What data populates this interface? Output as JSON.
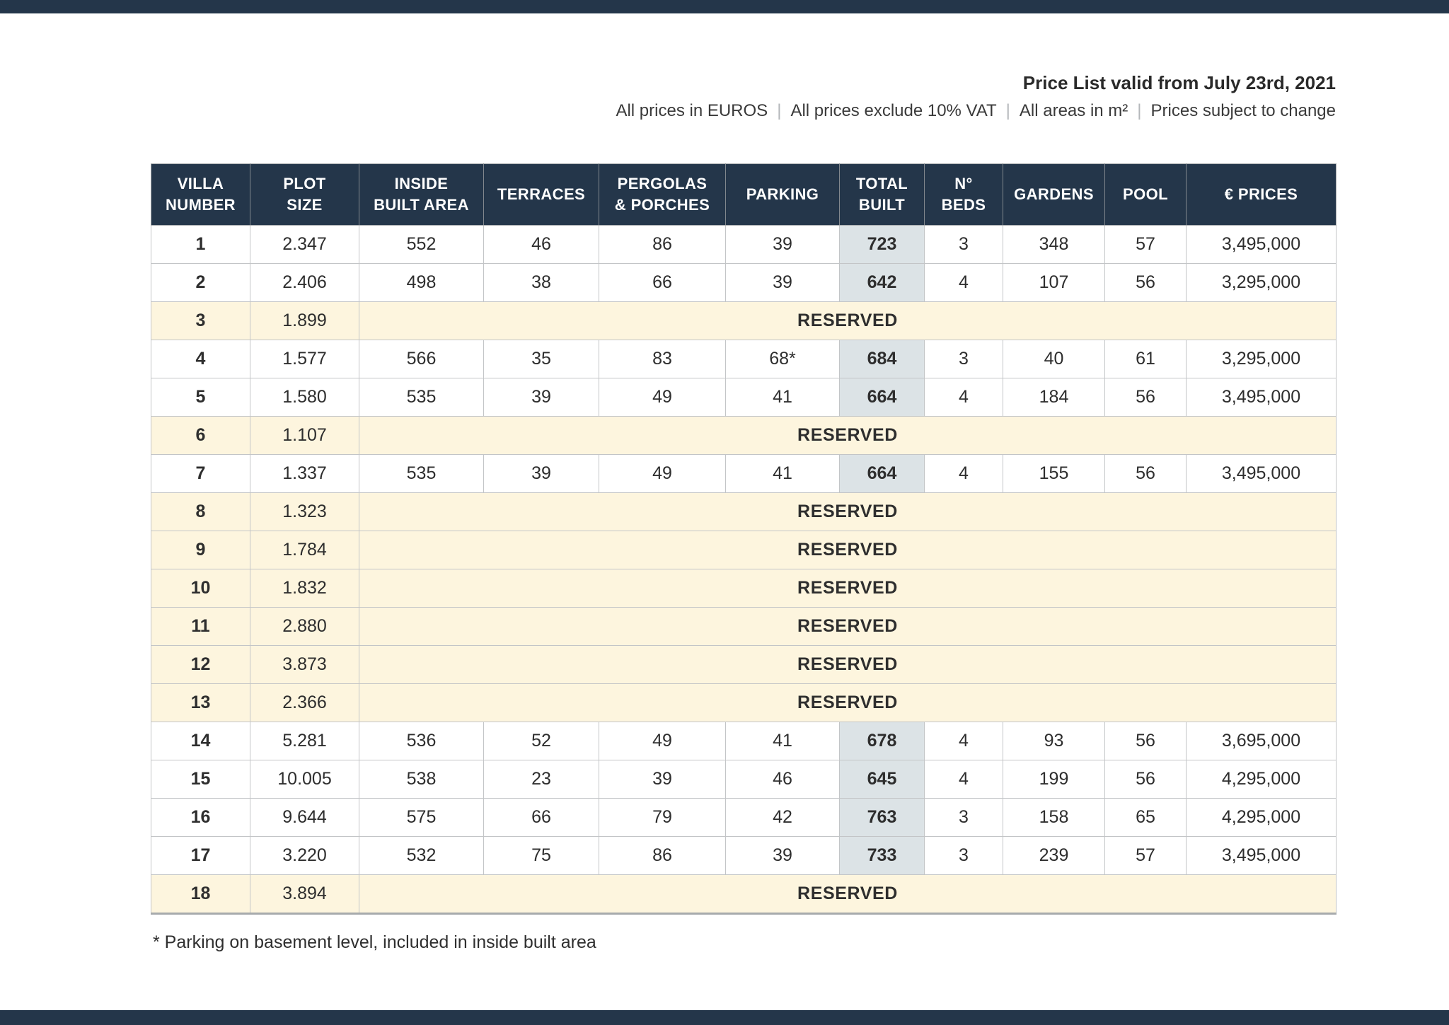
{
  "header": {
    "title": "Price List valid from July 23rd, 2021",
    "conditions": [
      "All prices in EUROS",
      "All prices exclude 10% VAT",
      "All areas in m²",
      "Prices subject to change"
    ],
    "separator": "|"
  },
  "table": {
    "columns": [
      {
        "key": "villa",
        "label": "VILLA\nNUMBER"
      },
      {
        "key": "plot",
        "label": "PLOT\nSIZE"
      },
      {
        "key": "inside",
        "label": "INSIDE\nBUILT AREA"
      },
      {
        "key": "terraces",
        "label": "TERRACES"
      },
      {
        "key": "pergolas",
        "label": "PERGOLAS\n& PORCHES"
      },
      {
        "key": "parking",
        "label": "PARKING"
      },
      {
        "key": "total",
        "label": "TOTAL\nBUILT"
      },
      {
        "key": "beds",
        "label": "N°\nBEDS"
      },
      {
        "key": "gardens",
        "label": "GARDENS"
      },
      {
        "key": "pool",
        "label": "POOL"
      },
      {
        "key": "price",
        "label": "€ PRICES"
      }
    ],
    "reserved_label": "RESERVED",
    "rows": [
      {
        "villa": "1",
        "plot": "2.347",
        "reserved": false,
        "inside": "552",
        "terraces": "46",
        "pergolas": "86",
        "parking": "39",
        "total": "723",
        "beds": "3",
        "gardens": "348",
        "pool": "57",
        "price": "3,495,000"
      },
      {
        "villa": "2",
        "plot": "2.406",
        "reserved": false,
        "inside": "498",
        "terraces": "38",
        "pergolas": "66",
        "parking": "39",
        "total": "642",
        "beds": "4",
        "gardens": "107",
        "pool": "56",
        "price": "3,295,000"
      },
      {
        "villa": "3",
        "plot": "1.899",
        "reserved": true
      },
      {
        "villa": "4",
        "plot": "1.577",
        "reserved": false,
        "inside": "566",
        "terraces": "35",
        "pergolas": "83",
        "parking": "68*",
        "total": "684",
        "beds": "3",
        "gardens": "40",
        "pool": "61",
        "price": "3,295,000"
      },
      {
        "villa": "5",
        "plot": "1.580",
        "reserved": false,
        "inside": "535",
        "terraces": "39",
        "pergolas": "49",
        "parking": "41",
        "total": "664",
        "beds": "4",
        "gardens": "184",
        "pool": "56",
        "price": "3,495,000"
      },
      {
        "villa": "6",
        "plot": "1.107",
        "reserved": true
      },
      {
        "villa": "7",
        "plot": "1.337",
        "reserved": false,
        "inside": "535",
        "terraces": "39",
        "pergolas": "49",
        "parking": "41",
        "total": "664",
        "beds": "4",
        "gardens": "155",
        "pool": "56",
        "price": "3,495,000"
      },
      {
        "villa": "8",
        "plot": "1.323",
        "reserved": true
      },
      {
        "villa": "9",
        "plot": "1.784",
        "reserved": true
      },
      {
        "villa": "10",
        "plot": "1.832",
        "reserved": true
      },
      {
        "villa": "11",
        "plot": "2.880",
        "reserved": true
      },
      {
        "villa": "12",
        "plot": "3.873",
        "reserved": true
      },
      {
        "villa": "13",
        "plot": "2.366",
        "reserved": true
      },
      {
        "villa": "14",
        "plot": "5.281",
        "reserved": false,
        "inside": "536",
        "terraces": "52",
        "pergolas": "49",
        "parking": "41",
        "total": "678",
        "beds": "4",
        "gardens": "93",
        "pool": "56",
        "price": "3,695,000"
      },
      {
        "villa": "15",
        "plot": "10.005",
        "reserved": false,
        "inside": "538",
        "terraces": "23",
        "pergolas": "39",
        "parking": "46",
        "total": "645",
        "beds": "4",
        "gardens": "199",
        "pool": "56",
        "price": "4,295,000"
      },
      {
        "villa": "16",
        "plot": "9.644",
        "reserved": false,
        "inside": "575",
        "terraces": "66",
        "pergolas": "79",
        "parking": "42",
        "total": "763",
        "beds": "3",
        "gardens": "158",
        "pool": "65",
        "price": "4,295,000"
      },
      {
        "villa": "17",
        "plot": "3.220",
        "reserved": false,
        "inside": "532",
        "terraces": "75",
        "pergolas": "86",
        "parking": "39",
        "total": "733",
        "beds": "3",
        "gardens": "239",
        "pool": "57",
        "price": "3,495,000"
      },
      {
        "villa": "18",
        "plot": "3.894",
        "reserved": true
      }
    ]
  },
  "footnote": "* Parking on basement level, included in inside built area",
  "colors": {
    "navy": "#24364a",
    "reserved_bg": "#fdf5de",
    "reserved_text": "#1a3a55",
    "total_built_bg": "#dce3e6",
    "cell_border": "#c3c5c7"
  }
}
